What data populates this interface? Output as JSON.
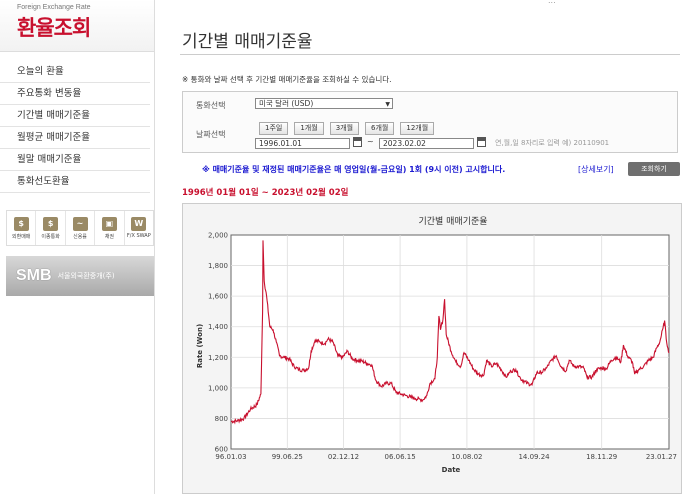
{
  "brand": {
    "subtitle": "Foreign Exchange Rate",
    "title": "환율조회"
  },
  "top_strip": "...",
  "sidebar": {
    "items": [
      {
        "label": "오늘의 환율"
      },
      {
        "label": "주요통화 변동율"
      },
      {
        "label": "기간별 매매기준율"
      },
      {
        "label": "월평균 매매기준율"
      },
      {
        "label": "월말 매매기준율"
      },
      {
        "label": "통화선도환율"
      }
    ],
    "quick": [
      {
        "label": "외환매매",
        "icon": "$"
      },
      {
        "label": "이종통화",
        "icon": "$"
      },
      {
        "label": "신용률",
        "icon": "~"
      },
      {
        "label": "채권",
        "icon": "▣"
      },
      {
        "label": "F/X SWAP",
        "icon": "W"
      }
    ],
    "smb": {
      "logo": "SMB",
      "name": "서울외국환중개(주)"
    }
  },
  "main": {
    "title": "기간별 매매기준율",
    "notice": "※ 통화와 날짜 선택 후 기간별 매매기준율을 조회하실 수 있습니다.",
    "form": {
      "currency_label": "통화선택",
      "currency_value": "미국 달러 (USD)",
      "date_label": "날짜선택",
      "periods": [
        "1주일",
        "1개월",
        "3개월",
        "6개월",
        "12개월"
      ],
      "start_date": "1996.01.01",
      "end_date": "2023.02.02",
      "tilde": "~",
      "date_hint": "연,월,일 8자리로 입력 예) 20110901"
    },
    "publish_notice": "※ 매매기준율 및 재정된 매매기준율은 매 영업일(월-금요일) 1회 (9시 이전) 고시합니다.",
    "detail_link": "[상세보기]",
    "search_button": "조회하기",
    "range": "1996년 01월 01일 ~ 2023년 02월 02일"
  },
  "chart_data": {
    "type": "line",
    "title": "기간별 매매기준율",
    "xlabel": "Date",
    "ylabel": "Rate (Won)",
    "ylim": [
      600,
      2000
    ],
    "yticks": [
      "600",
      "800",
      "1,000",
      "1,200",
      "1,400",
      "1,600",
      "1,800",
      "2,000"
    ],
    "xticks": [
      {
        "label": "96.01.03",
        "year": 1996.0
      },
      {
        "label": "99.06.25",
        "year": 1999.48
      },
      {
        "label": "02.12.12",
        "year": 2002.95
      },
      {
        "label": "06.06.15",
        "year": 2006.45
      },
      {
        "label": "10.08.02",
        "year": 2010.58
      },
      {
        "label": "14.09.24",
        "year": 2014.73
      },
      {
        "label": "18.11.29",
        "year": 2018.91
      },
      {
        "label": "23.01.27",
        "year": 2023.07
      }
    ],
    "grid": true,
    "color": "#c8102e",
    "series": [
      {
        "points": [
          [
            1996.0,
            780
          ],
          [
            1996.4,
            785
          ],
          [
            1996.8,
            800
          ],
          [
            1997.2,
            860
          ],
          [
            1997.6,
            890
          ],
          [
            1997.85,
            960
          ],
          [
            1997.95,
            1500
          ],
          [
            1997.98,
            1965
          ],
          [
            1998.05,
            1700
          ],
          [
            1998.2,
            1600
          ],
          [
            1998.4,
            1400
          ],
          [
            1998.6,
            1380
          ],
          [
            1998.8,
            1300
          ],
          [
            1999.0,
            1210
          ],
          [
            1999.3,
            1200
          ],
          [
            1999.6,
            1190
          ],
          [
            1999.9,
            1140
          ],
          [
            2000.2,
            1120
          ],
          [
            2000.5,
            1115
          ],
          [
            2000.8,
            1130
          ],
          [
            2000.95,
            1240
          ],
          [
            2001.2,
            1310
          ],
          [
            2001.5,
            1300
          ],
          [
            2001.8,
            1290
          ],
          [
            2002.0,
            1320
          ],
          [
            2002.3,
            1300
          ],
          [
            2002.6,
            1210
          ],
          [
            2002.9,
            1200
          ],
          [
            2003.2,
            1240
          ],
          [
            2003.5,
            1190
          ],
          [
            2003.8,
            1180
          ],
          [
            2004.1,
            1175
          ],
          [
            2004.4,
            1160
          ],
          [
            2004.7,
            1150
          ],
          [
            2004.95,
            1050
          ],
          [
            2005.3,
            1010
          ],
          [
            2005.6,
            1030
          ],
          [
            2005.9,
            1030
          ],
          [
            2006.2,
            970
          ],
          [
            2006.5,
            960
          ],
          [
            2006.8,
            950
          ],
          [
            2007.1,
            940
          ],
          [
            2007.4,
            930
          ],
          [
            2007.7,
            925
          ],
          [
            2007.85,
            920
          ],
          [
            2008.1,
            950
          ],
          [
            2008.3,
            1030
          ],
          [
            2008.6,
            1060
          ],
          [
            2008.75,
            1200
          ],
          [
            2008.85,
            1470
          ],
          [
            2008.95,
            1380
          ],
          [
            2009.1,
            1450
          ],
          [
            2009.2,
            1580
          ],
          [
            2009.3,
            1350
          ],
          [
            2009.6,
            1240
          ],
          [
            2009.9,
            1170
          ],
          [
            2010.2,
            1140
          ],
          [
            2010.4,
            1230
          ],
          [
            2010.7,
            1180
          ],
          [
            2011.0,
            1120
          ],
          [
            2011.3,
            1090
          ],
          [
            2011.6,
            1080
          ],
          [
            2011.8,
            1180
          ],
          [
            2012.1,
            1140
          ],
          [
            2012.4,
            1160
          ],
          [
            2012.7,
            1120
          ],
          [
            2013.0,
            1070
          ],
          [
            2013.3,
            1110
          ],
          [
            2013.6,
            1120
          ],
          [
            2013.9,
            1060
          ],
          [
            2014.3,
            1030
          ],
          [
            2014.6,
            1020
          ],
          [
            2014.9,
            1100
          ],
          [
            2015.2,
            1100
          ],
          [
            2015.5,
            1130
          ],
          [
            2015.8,
            1180
          ],
          [
            2016.1,
            1210
          ],
          [
            2016.4,
            1140
          ],
          [
            2016.7,
            1110
          ],
          [
            2016.9,
            1180
          ],
          [
            2017.2,
            1140
          ],
          [
            2017.5,
            1140
          ],
          [
            2017.8,
            1130
          ],
          [
            2018.0,
            1070
          ],
          [
            2018.3,
            1070
          ],
          [
            2018.6,
            1120
          ],
          [
            2018.9,
            1130
          ],
          [
            2019.2,
            1125
          ],
          [
            2019.5,
            1180
          ],
          [
            2019.8,
            1200
          ],
          [
            2020.1,
            1170
          ],
          [
            2020.25,
            1280
          ],
          [
            2020.5,
            1210
          ],
          [
            2020.8,
            1170
          ],
          [
            2020.95,
            1090
          ],
          [
            2021.2,
            1120
          ],
          [
            2021.5,
            1140
          ],
          [
            2021.8,
            1180
          ],
          [
            2022.1,
            1200
          ],
          [
            2022.3,
            1260
          ],
          [
            2022.5,
            1300
          ],
          [
            2022.7,
            1390
          ],
          [
            2022.8,
            1440
          ],
          [
            2022.9,
            1320
          ],
          [
            2023.0,
            1260
          ],
          [
            2023.08,
            1230
          ]
        ]
      }
    ]
  }
}
